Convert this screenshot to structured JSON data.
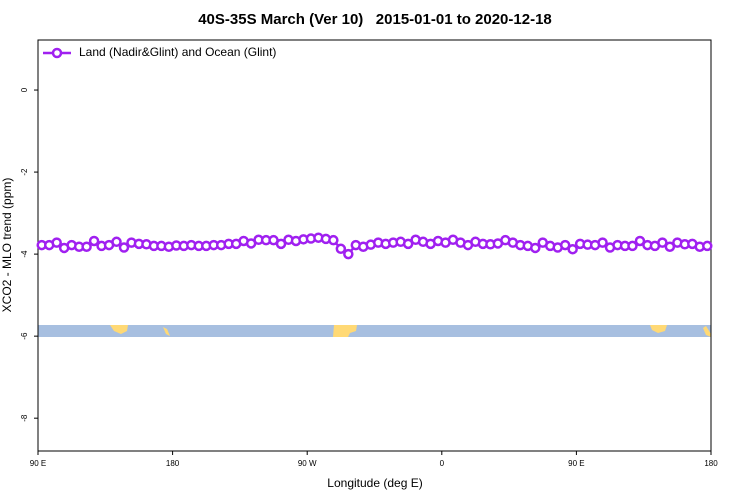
{
  "chart_data": {
    "type": "line",
    "title": "40S-35S March (Ver 10)   2015-01-01 to 2020-12-18",
    "x_label": "Longitude (deg E)",
    "y_label": "XCO2 - MLO trend (ppm)",
    "xlim": [
      90,
      540
    ],
    "ylim": [
      -8.8,
      1.22
    ],
    "xticks": [
      {
        "value": 90,
        "label": "90 E"
      },
      180,
      {
        "value": 270,
        "label": "90 W"
      },
      {
        "value": 360,
        "label": "0"
      },
      {
        "value": 450,
        "label": "90 E"
      },
      {
        "value": 540,
        "label": "180"
      }
    ],
    "yticks": [
      0,
      -2,
      -4,
      -6,
      -8
    ],
    "legend": "top-left",
    "x": [
      92.5,
      97.5,
      102.5,
      107.5,
      112.5,
      117.5,
      122.5,
      127.5,
      132.5,
      137.5,
      142.5,
      147.5,
      152.5,
      157.5,
      162.5,
      167.5,
      172.5,
      177.5,
      182.5,
      187.5,
      192.5,
      197.5,
      202.5,
      207.5,
      212.5,
      217.5,
      222.5,
      227.5,
      232.5,
      237.5,
      242.5,
      247.5,
      252.5,
      257.5,
      262.5,
      267.5,
      272.5,
      277.5,
      282.5,
      287.5,
      292.5,
      297.5,
      302.5,
      307.5,
      312.5,
      317.5,
      322.5,
      327.5,
      332.5,
      337.5,
      342.5,
      347.5,
      352.5,
      357.5,
      362.5,
      367.5,
      372.5,
      377.5,
      382.5,
      387.5,
      392.5,
      397.5,
      402.5,
      407.5,
      412.5,
      417.5,
      422.5,
      427.5,
      432.5,
      437.5,
      442.5,
      447.5,
      452.5,
      457.5,
      462.5,
      467.5,
      472.5,
      477.5,
      482.5,
      487.5,
      492.5,
      497.5,
      502.5,
      507.5,
      512.5,
      517.5,
      522.5,
      527.5,
      532.5,
      537.5
    ],
    "series": [
      {
        "name": "Land (Nadir&Glint) and Ocean (Glint)",
        "color": "#a020f0",
        "values": [
          -3.78,
          -3.78,
          -3.72,
          -3.85,
          -3.78,
          -3.82,
          -3.82,
          -3.68,
          -3.8,
          -3.78,
          -3.7,
          -3.84,
          -3.72,
          -3.75,
          -3.76,
          -3.8,
          -3.8,
          -3.82,
          -3.79,
          -3.8,
          -3.78,
          -3.8,
          -3.8,
          -3.78,
          -3.78,
          -3.75,
          -3.75,
          -3.68,
          -3.74,
          -3.65,
          -3.66,
          -3.66,
          -3.75,
          -3.65,
          -3.68,
          -3.64,
          -3.62,
          -3.6,
          -3.63,
          -3.66,
          -3.87,
          -4.0,
          -3.78,
          -3.82,
          -3.77,
          -3.72,
          -3.75,
          -3.72,
          -3.7,
          -3.75,
          -3.65,
          -3.7,
          -3.75,
          -3.68,
          -3.72,
          -3.65,
          -3.72,
          -3.78,
          -3.7,
          -3.75,
          -3.76,
          -3.74,
          -3.66,
          -3.72,
          -3.78,
          -3.8,
          -3.85,
          -3.72,
          -3.8,
          -3.84,
          -3.78,
          -3.88,
          -3.75,
          -3.77,
          -3.78,
          -3.72,
          -3.84,
          -3.78,
          -3.8,
          -3.8,
          -3.68,
          -3.78,
          -3.8,
          -3.72,
          -3.82,
          -3.72,
          -3.76,
          -3.75,
          -3.82,
          -3.8
        ]
      }
    ]
  }
}
